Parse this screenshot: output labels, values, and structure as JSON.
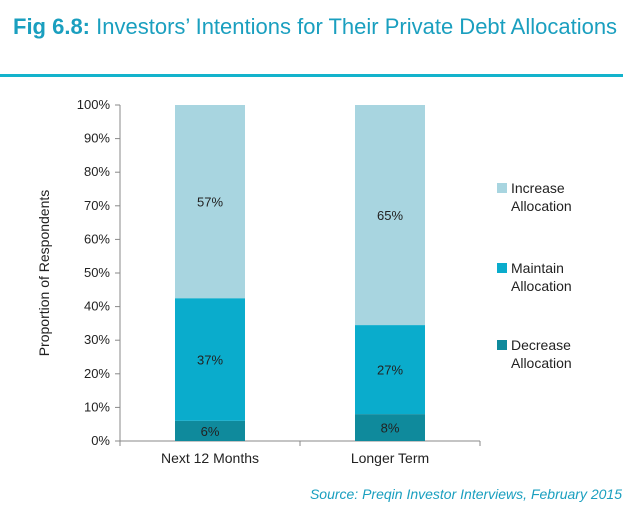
{
  "title": {
    "fig_number": "Fig 6.8:",
    "text": "Investors’ Intentions for Their Private Debt Allocations"
  },
  "source": "Source: Preqin Investor Interviews, February 2015",
  "chart_data": {
    "type": "bar",
    "stacked": true,
    "categories": [
      "Next 12 Months",
      "Longer Term"
    ],
    "series": [
      {
        "name": "Decrease Allocation",
        "values": [
          6,
          8
        ],
        "labels": [
          "6%",
          "8%"
        ],
        "color": "#0f8a9c"
      },
      {
        "name": "Maintain Allocation",
        "values": [
          37,
          27
        ],
        "labels": [
          "37%",
          "27%"
        ],
        "color": "#0aaccc"
      },
      {
        "name": "Increase Allocation",
        "values": [
          57,
          65
        ],
        "labels": [
          "57%",
          "65%"
        ],
        "color": "#a8d5e0"
      }
    ],
    "bar_tops": [
      42.5,
      34.5,
      100,
      100
    ],
    "ylabel": "Proportion of Respondents",
    "ylim": [
      0,
      100
    ],
    "yticks": [
      "0%",
      "10%",
      "20%",
      "30%",
      "40%",
      "50%",
      "60%",
      "70%",
      "80%",
      "90%",
      "100%"
    ],
    "legend_position": "right",
    "legend": [
      {
        "line1": "Increase",
        "line2": "Allocation",
        "color": "#a8d5e0"
      },
      {
        "line1": "Maintain",
        "line2": "Allocation",
        "color": "#0aaccc"
      },
      {
        "line1": "Decrease",
        "line2": "Allocation",
        "color": "#0f8a9c"
      }
    ],
    "grid": false
  }
}
